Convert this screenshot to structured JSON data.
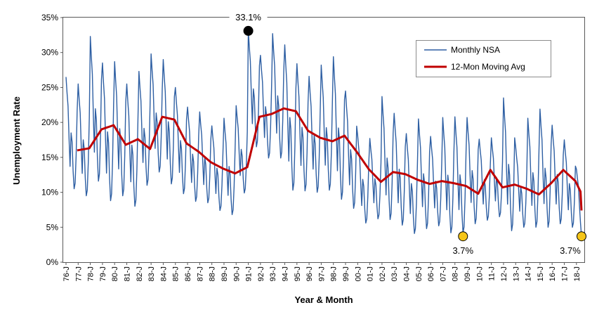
{
  "chart_data": {
    "type": "line",
    "title": "",
    "xlabel": "Year & Month",
    "ylabel": "Unemployment Rate",
    "x_start": "1976-01",
    "x_end": "2018-06",
    "ylim": [
      0,
      35
    ],
    "y_ticks": [
      "0%",
      "5%",
      "10%",
      "15%",
      "20%",
      "25%",
      "30%",
      "35%"
    ],
    "x_tick_labels": [
      "76-J",
      "77-J",
      "78-J",
      "79-J",
      "80-J",
      "81-J",
      "82-J",
      "83-J",
      "84-J",
      "85-J",
      "86-J",
      "87-J",
      "88-J",
      "89-J",
      "90-J",
      "91-J",
      "92-J",
      "93-J",
      "94-J",
      "95-J",
      "96-J",
      "97-J",
      "98-J",
      "99-J",
      "00-J",
      "01-J",
      "02-J",
      "03-J",
      "04-J",
      "05-J",
      "06-J",
      "07-J",
      "08-J",
      "09-J",
      "10-J",
      "11-J",
      "12-J",
      "13-J",
      "14-J",
      "15-J",
      "16-J",
      "17-J",
      "18-J"
    ],
    "grid": false,
    "legend_position": "top-right",
    "series": [
      {
        "name": "Monthly NSA",
        "color": "#2e5fa3",
        "style": "seasonal monthly line",
        "annual_peaks": [
          26.5,
          25.5,
          32.3,
          28.5,
          28.7,
          25.5,
          27.3,
          29.8,
          29.0,
          25.0,
          22.2,
          21.5,
          19.5,
          20.6,
          22.4,
          33.1,
          29.6,
          32.7,
          31.1,
          28.4,
          26.6,
          28.2,
          29.4,
          24.5,
          18.1,
          17.7,
          23.7,
          21.3,
          18.4,
          20.5,
          18.0,
          20.7,
          20.8,
          20.7,
          17.6,
          17.8,
          23.5,
          16.5,
          20.6,
          21.9,
          19.6,
          17.5,
          13.3
        ],
        "annual_troughs": [
          10.5,
          9.5,
          11.6,
          8.8,
          9.5,
          8.0,
          11.0,
          12.9,
          11.2,
          9.8,
          8.7,
          8.5,
          7.4,
          6.8,
          9.9,
          16.5,
          14.9,
          14.9,
          10.3,
          10.2,
          10.0,
          10.3,
          9.0,
          7.7,
          5.6,
          6.2,
          6.1,
          5.3,
          4.1,
          4.8,
          5.2,
          4.2,
          4.2,
          5.5,
          6.0,
          6.5,
          4.5,
          5.0,
          5.0,
          5.0,
          5.5,
          5.0,
          3.7
        ]
      },
      {
        "name": "12-Mon Moving Avg",
        "color": "#c00000",
        "annual_values": [
          16.0,
          16.3,
          19.0,
          19.6,
          16.8,
          17.6,
          16.2,
          20.8,
          20.4,
          17.0,
          15.8,
          14.3,
          13.4,
          12.7,
          13.6,
          20.8,
          21.2,
          22.0,
          21.6,
          18.8,
          17.8,
          17.3,
          18.1,
          15.8,
          13.3,
          11.5,
          12.9,
          12.6,
          11.8,
          11.2,
          11.6,
          11.3,
          10.9,
          9.8,
          13.2,
          10.7,
          11.1,
          10.5,
          9.7,
          11.3,
          13.2,
          11.6,
          8.0
        ],
        "start": "1976-12",
        "end": "2018-06",
        "last_value": 7.4
      }
    ],
    "annotations": [
      {
        "label": "33.1%",
        "date": "1991-01",
        "value": 33.1,
        "marker": "black-circle"
      },
      {
        "label": "3.7%",
        "date": "2008-09",
        "value": 3.7,
        "marker": "gold-circle"
      },
      {
        "label": "3.7%",
        "date": "2018-06",
        "value": 3.7,
        "marker": "gold-circle"
      }
    ]
  }
}
